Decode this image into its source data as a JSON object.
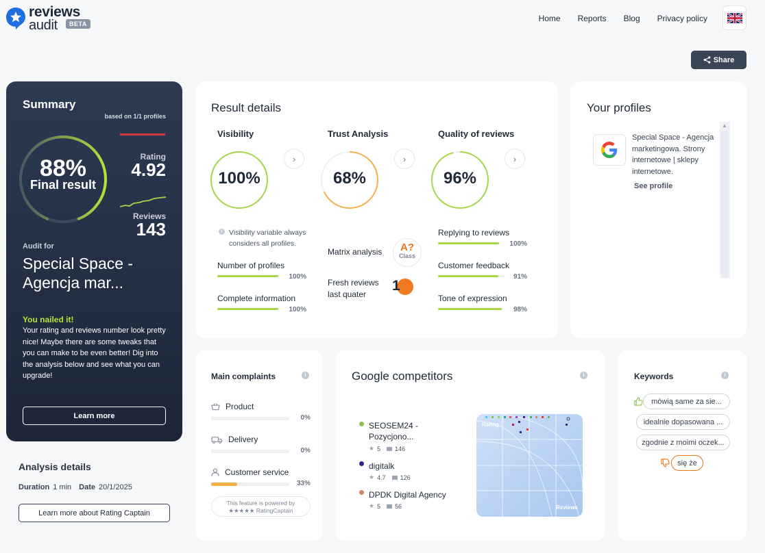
{
  "header": {
    "logo_line1": "reviews",
    "logo_line2": "audit",
    "logo_badge": "BETA",
    "nav": [
      "Home",
      "Reports",
      "Blog",
      "Privacy policy"
    ],
    "language": "UK flag",
    "share_label": "Share"
  },
  "summary": {
    "title": "Summary",
    "based_on": "based on 1/1 profiles",
    "final_pct": "88%",
    "final_label": "Final result",
    "final_value": 0.88,
    "rating_label": "Rating",
    "rating_value": "4.92",
    "reviews_label": "Reviews",
    "reviews_value": "143",
    "audit_for": "Audit for",
    "company": "Special Space - Agencja mar...",
    "nailed": "You nailed it!",
    "description": "Your rating and reviews number look pretty nice! Maybe there are some tweaks that you can make to be even better! Dig into the analysis below and see what you can upgrade!",
    "learn_more": "Learn more"
  },
  "analysis": {
    "title": "Analysis details",
    "duration_label": "Duration",
    "duration_value": "1 min",
    "date_label": "Date",
    "date_value": "20/1/2025",
    "button": "Learn more about Rating Captain"
  },
  "result": {
    "title": "Result details",
    "visibility": {
      "title": "Visibility",
      "value": "100%",
      "fraction": 1.0,
      "note": "Visibility variable always considers all profiles.",
      "items": [
        {
          "label": "Number of profiles",
          "value": "100%",
          "fraction": 1.0
        },
        {
          "label": "Complete information",
          "value": "100%",
          "fraction": 1.0
        }
      ]
    },
    "trust": {
      "title": "Trust Analysis",
      "value": "68%",
      "fraction": 0.68,
      "matrix_label": "Matrix analysis",
      "badge_top": "A?",
      "badge_bottom": "Class",
      "fresh_label": "Fresh reviews last quater",
      "fresh_value": "1"
    },
    "quality": {
      "title": "Quality of reviews",
      "value": "96%",
      "fraction": 0.96,
      "items": [
        {
          "label": "Replying to reviews",
          "value": "100%",
          "fraction": 1.0
        },
        {
          "label": "Customer feedback",
          "value": "91%",
          "fraction": 0.91
        },
        {
          "label": "Tone of expression",
          "value": "98%",
          "fraction": 0.98
        }
      ]
    }
  },
  "profiles": {
    "title": "Your profiles",
    "profile_text": "Special Space - Agencja marketingowa. Strony internetowe | sklepy internetowe.",
    "see_profile": "See profile"
  },
  "complaints": {
    "title": "Main complaints",
    "items": [
      {
        "label": "Product",
        "value": "0%",
        "fraction": 0.0
      },
      {
        "label": "Delivery",
        "value": "0%",
        "fraction": 0.0
      },
      {
        "label": "Customer service",
        "value": "33%",
        "fraction": 0.33
      }
    ],
    "powered_line1": "This feature is powered by",
    "powered_line2": "★★★★★ RatingCaptain"
  },
  "competitors": {
    "title": "Google competitors",
    "items": [
      {
        "name": "SEOSEM24 - Pozycjono...",
        "rating": "5",
        "reviews": "146",
        "color": "#8bc34a"
      },
      {
        "name": "digitalk",
        "rating": "4.7",
        "reviews": "126",
        "color": "#3b1f8f"
      },
      {
        "name": "DPDK Digital Agency",
        "rating": "5",
        "reviews": "56",
        "color": "#d4826a"
      }
    ],
    "map_rating_label": "Rating",
    "map_reviews_label": "Reviews"
  },
  "keywords": {
    "title": "Keywords",
    "positive": [
      "mówią same za sie...",
      "idealnie dopasowana ...",
      "zgodnie z moimi oczek..."
    ],
    "negative": [
      "się że"
    ]
  }
}
